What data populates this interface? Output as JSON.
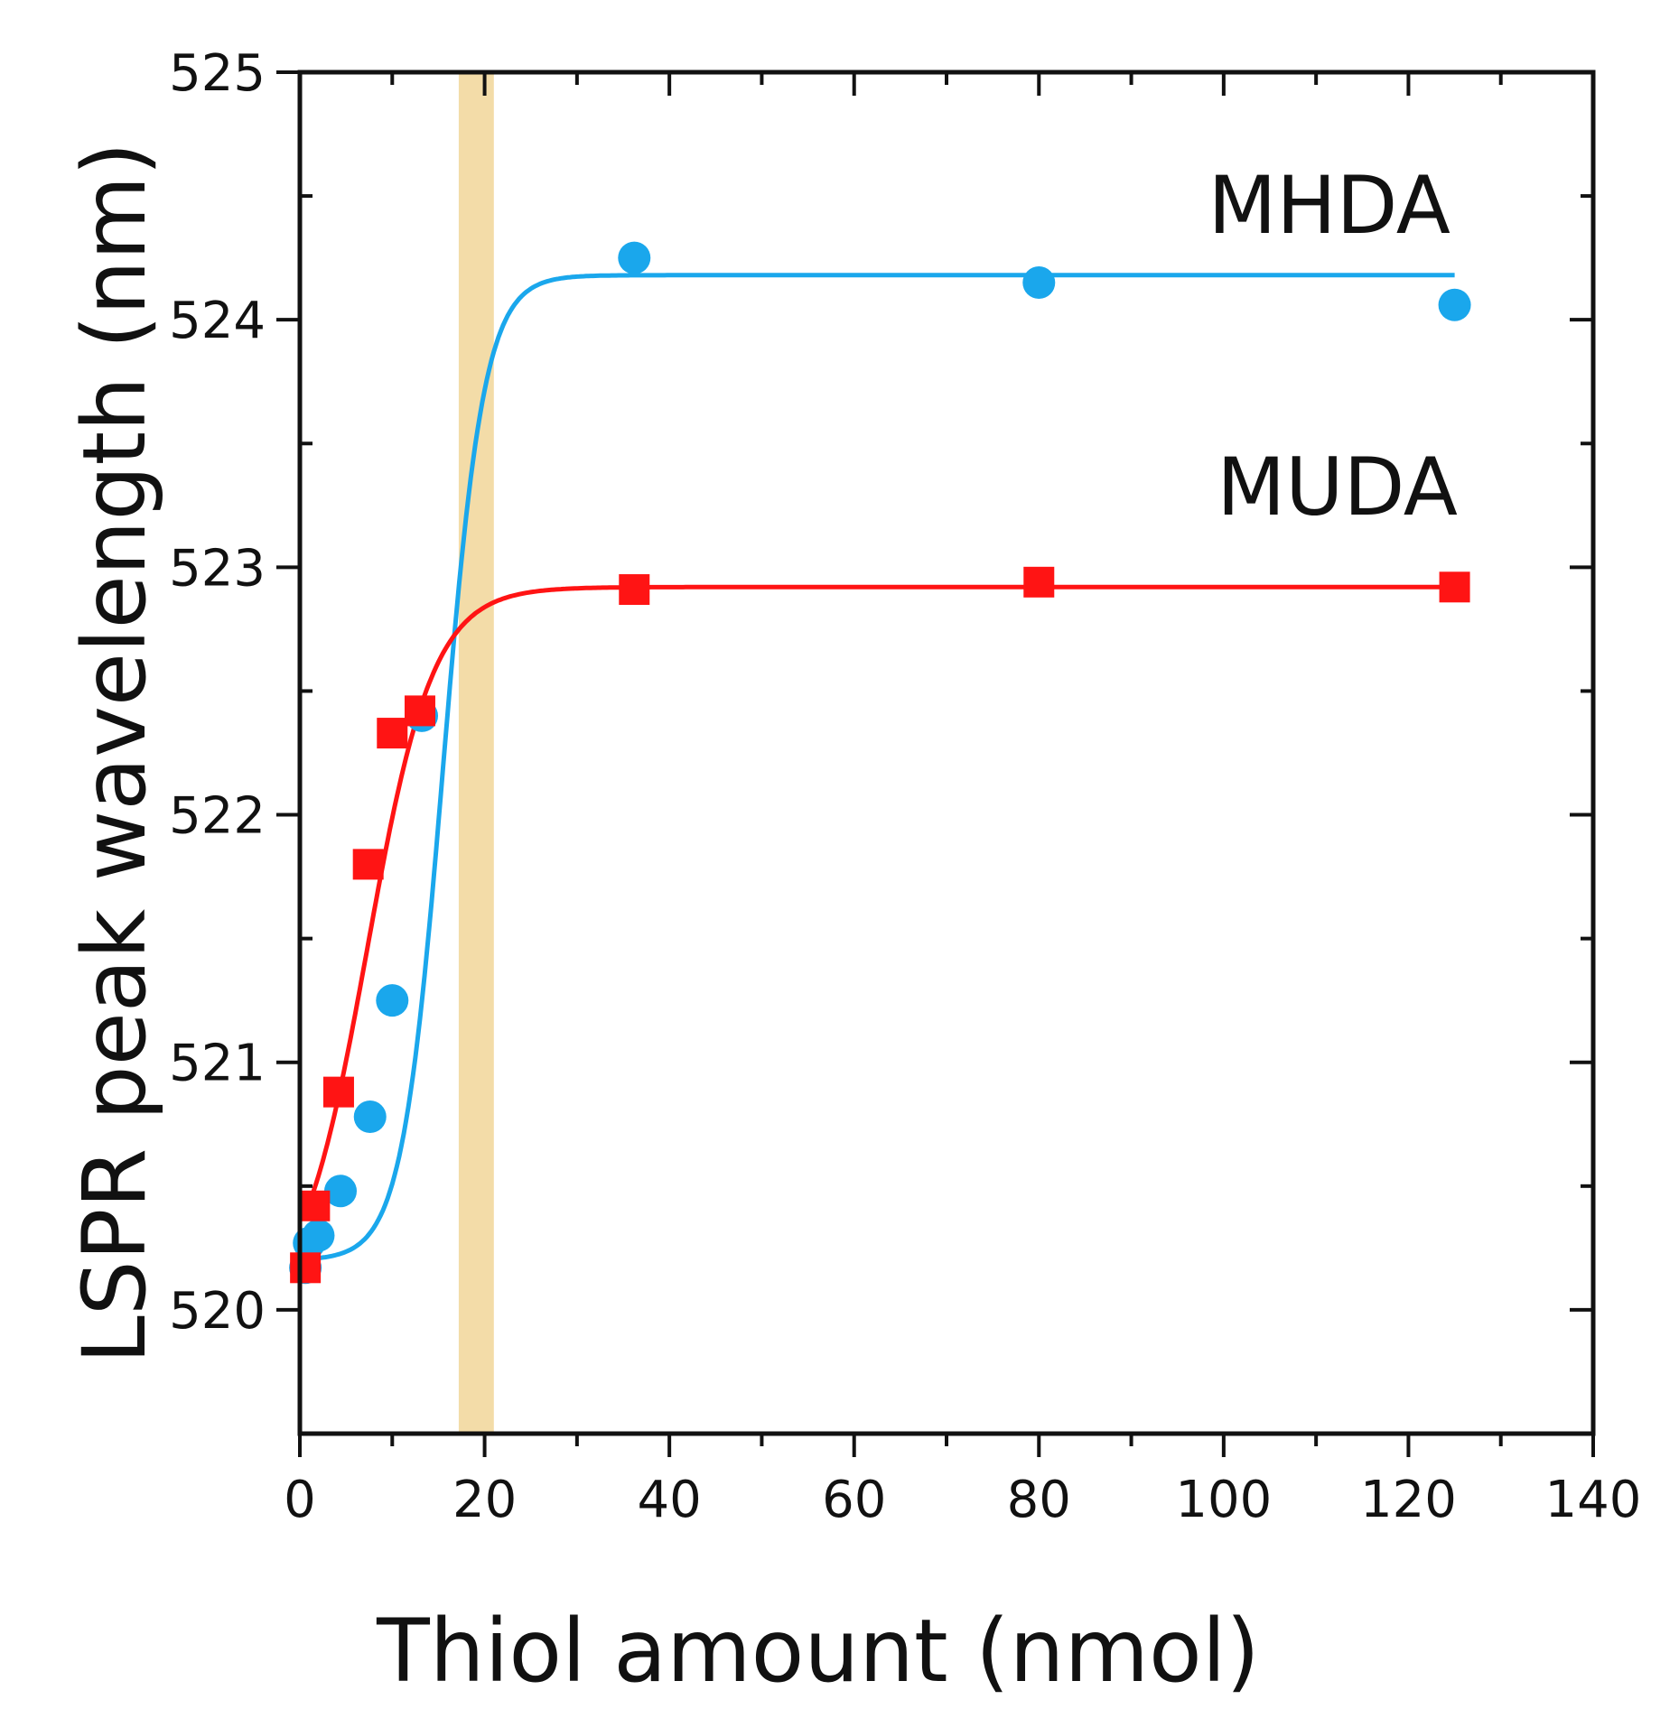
{
  "chart_data": {
    "type": "scatter",
    "title": "",
    "xlabel": "Thiol amount (nmol)",
    "ylabel": "LSPR peak wavelength (nm)",
    "xlim": [
      0,
      140
    ],
    "ylim": [
      519.5,
      525
    ],
    "x_ticks": [
      0,
      20,
      40,
      60,
      80,
      100,
      120,
      140
    ],
    "y_ticks": [
      520,
      521,
      522,
      523,
      524,
      525
    ],
    "grid": false,
    "highlight_band": {
      "x_range": [
        17.2,
        21
      ],
      "color": "#f3dca8"
    },
    "series": [
      {
        "name": "MHDA",
        "marker": "circle",
        "color": "#1aa7ec",
        "points": [
          {
            "x": 0.6,
            "y": 520.17
          },
          {
            "x": 1.0,
            "y": 520.27
          },
          {
            "x": 2.0,
            "y": 520.3
          },
          {
            "x": 4.4,
            "y": 520.48
          },
          {
            "x": 7.6,
            "y": 520.78
          },
          {
            "x": 10.0,
            "y": 521.25
          },
          {
            "x": 13.2,
            "y": 522.4
          },
          {
            "x": 36.2,
            "y": 524.25
          },
          {
            "x": 80.0,
            "y": 524.15
          },
          {
            "x": 125.0,
            "y": 524.06
          }
        ],
        "fit": {
          "model": "sigmoid",
          "base": 520.2,
          "top": 524.18,
          "x0": 15.5,
          "k": 0.45
        }
      },
      {
        "name": "MUDA",
        "marker": "square",
        "color": "#ff1414",
        "points": [
          {
            "x": 0.6,
            "y": 520.17
          },
          {
            "x": 1.6,
            "y": 520.42
          },
          {
            "x": 4.2,
            "y": 520.88
          },
          {
            "x": 7.4,
            "y": 521.8
          },
          {
            "x": 10.0,
            "y": 522.33
          },
          {
            "x": 13.0,
            "y": 522.42
          },
          {
            "x": 36.2,
            "y": 522.91
          },
          {
            "x": 80.0,
            "y": 522.94
          },
          {
            "x": 125.0,
            "y": 522.92
          }
        ],
        "fit": {
          "model": "sigmoid",
          "base": 520.0,
          "top": 522.92,
          "x0": 7.3,
          "k": 0.28
        }
      }
    ]
  }
}
